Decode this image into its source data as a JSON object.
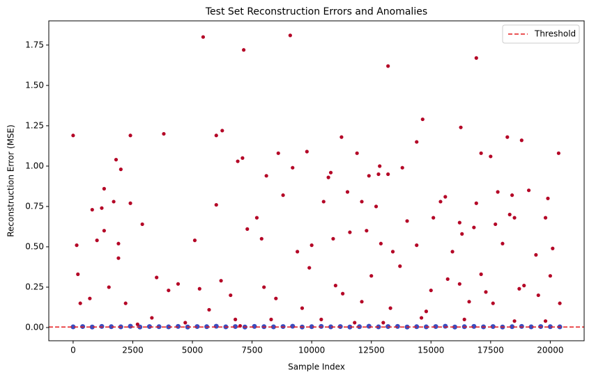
{
  "chart_data": {
    "type": "scatter",
    "title": "Test Set Reconstruction Errors and Anomalies",
    "x_label": "Sample Index",
    "y_label": "Reconstruction Error (MSE)",
    "xlim": [
      -1020,
      21420
    ],
    "ylim": [
      -0.082,
      1.9
    ],
    "xticks": [
      0,
      2500,
      5000,
      7500,
      10000,
      12500,
      15000,
      17500,
      20000
    ],
    "yticks": [
      {
        "value": 0,
        "label": "0.00"
      },
      0.25,
      {
        "value": 0.5,
        "label": "0.50"
      },
      0.75,
      {
        "value": 1,
        "label": "1.00"
      },
      1.25,
      {
        "value": 1.5,
        "label": "1.50"
      },
      1.75
    ],
    "threshold": {
      "name": "Threshold",
      "value": 0.003,
      "color": "#e41a1c"
    },
    "legend": "upper right",
    "series": [
      {
        "color": "#3b4cc0",
        "x": [
          0,
          400,
          800,
          1200,
          1600,
          2000,
          2400,
          2800,
          3200,
          3600,
          4000,
          4400,
          4800,
          5200,
          5600,
          6000,
          6400,
          6800,
          7200,
          7600,
          8000,
          8400,
          8800,
          9200,
          9600,
          10000,
          10400,
          10800,
          11200,
          11600,
          12000,
          12400,
          12800,
          13200,
          13600,
          14000,
          14400,
          14800,
          15200,
          15600,
          16000,
          16400,
          16800,
          17200,
          17600,
          18000,
          18400,
          18800,
          19200,
          19600,
          20000,
          20400
        ],
        "values": [
          0.004,
          0.006,
          0.003,
          0.007,
          0.005,
          0.004,
          0.008,
          0.003,
          0.006,
          0.005,
          0.004,
          0.007,
          0.003,
          0.006,
          0.005,
          0.008,
          0.004,
          0.006,
          0.003,
          0.007,
          0.005,
          0.004,
          0.006,
          0.008,
          0.003,
          0.005,
          0.007,
          0.004,
          0.006,
          0.003,
          0.005,
          0.008,
          0.004,
          0.006,
          0.007,
          0.003,
          0.005,
          0.004,
          0.006,
          0.008,
          0.003,
          0.005,
          0.007,
          0.004,
          0.006,
          0.003,
          0.005,
          0.007,
          0.004,
          0.006,
          0.005,
          0.004
        ]
      },
      {
        "color": "#b40426",
        "x": [
          0,
          2400,
          3800,
          5450,
          9100,
          7150,
          13200,
          16900,
          14650,
          6250,
          6000,
          11250,
          16250,
          18200,
          18800,
          14400,
          7100,
          6900,
          8600,
          9800,
          11900,
          17100,
          17500,
          20350,
          1800,
          2000,
          9200,
          12850,
          13800,
          10800,
          12800,
          13200,
          12400,
          10700,
          8100,
          1300,
          8800,
          11500,
          15600,
          17800,
          18400,
          19100,
          16900,
          10500,
          1700,
          2400,
          6000,
          14000,
          15400,
          18300,
          19900,
          800,
          1200,
          12100,
          12700,
          18500,
          7700,
          15100,
          16200,
          2900,
          17700,
          16800,
          1300,
          7300,
          11600,
          12300,
          5100,
          7900,
          10900,
          16300,
          19800,
          150,
          1000,
          1900,
          12900,
          14400,
          18000,
          20100,
          9400,
          10000,
          15900,
          13400,
          17100,
          19400,
          1900,
          300,
          700,
          2200,
          3500,
          4400,
          5700,
          6600,
          8500,
          9600,
          11000,
          12100,
          13300,
          14800,
          15700,
          16600,
          17600,
          18700,
          19500,
          20400,
          200,
          1500,
          4000,
          5300,
          6200,
          8000,
          9900,
          11300,
          12500,
          13700,
          15000,
          16200,
          17300,
          18900,
          20000,
          3300,
          4700,
          6800,
          8300,
          10400,
          11800,
          13000,
          14600,
          16400,
          18500,
          19800,
          7000,
          2700
        ],
        "values": [
          1.19,
          1.19,
          1.2,
          1.8,
          1.81,
          1.72,
          1.62,
          1.67,
          1.29,
          1.22,
          1.19,
          1.18,
          1.24,
          1.18,
          1.16,
          1.15,
          1.05,
          1.03,
          1.08,
          1.09,
          1.08,
          1.08,
          1.06,
          1.08,
          1.04,
          0.98,
          0.99,
          1.0,
          0.99,
          0.96,
          0.95,
          0.95,
          0.94,
          0.93,
          0.94,
          0.86,
          0.82,
          0.84,
          0.81,
          0.84,
          0.82,
          0.85,
          0.77,
          0.78,
          0.78,
          0.77,
          0.76,
          0.66,
          0.78,
          0.7,
          0.8,
          0.73,
          0.74,
          0.78,
          0.75,
          0.68,
          0.68,
          0.68,
          0.65,
          0.64,
          0.64,
          0.62,
          0.6,
          0.61,
          0.59,
          0.6,
          0.54,
          0.55,
          0.55,
          0.58,
          0.68,
          0.51,
          0.54,
          0.52,
          0.52,
          0.51,
          0.52,
          0.49,
          0.47,
          0.51,
          0.47,
          0.47,
          0.33,
          0.45,
          0.43,
          0.15,
          0.18,
          0.15,
          0.31,
          0.27,
          0.11,
          0.2,
          0.18,
          0.12,
          0.26,
          0.16,
          0.12,
          0.1,
          0.3,
          0.16,
          0.15,
          0.24,
          0.2,
          0.15,
          0.33,
          0.25,
          0.23,
          0.24,
          0.29,
          0.25,
          0.37,
          0.21,
          0.32,
          0.38,
          0.23,
          0.27,
          0.22,
          0.26,
          0.32,
          0.06,
          0.03,
          0.05,
          0.05,
          0.05,
          0.03,
          0.03,
          0.06,
          0.05,
          0.04,
          0.04,
          0.01,
          0.02
        ]
      }
    ]
  }
}
